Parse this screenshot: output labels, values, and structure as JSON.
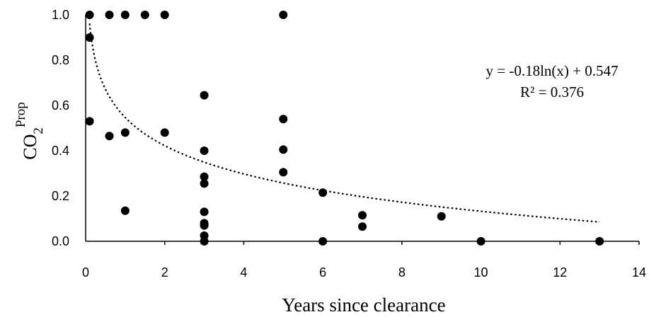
{
  "chart_data": {
    "type": "scatter",
    "xlabel": "Years since clearance",
    "ylabel": {
      "main": "CO",
      "sub": "2",
      "sup": "Prop"
    },
    "xlim": [
      0,
      14
    ],
    "ylim": [
      0,
      1.0
    ],
    "xticks": [
      0,
      2,
      4,
      6,
      8,
      10,
      12,
      14
    ],
    "yticks": [
      0.0,
      0.2,
      0.4,
      0.6,
      0.8,
      1.0
    ],
    "xtick_labels": [
      "0",
      "2",
      "4",
      "6",
      "8",
      "10",
      "12",
      "14"
    ],
    "ytick_labels": [
      "0.0",
      "0.2",
      "0.4",
      "0.6",
      "0.8",
      "1.0"
    ],
    "grid": false,
    "marker_color": "#000000",
    "points": [
      {
        "x": 0.1,
        "y": 1.0
      },
      {
        "x": 0.1,
        "y": 0.9
      },
      {
        "x": 0.1,
        "y": 0.53
      },
      {
        "x": 0.6,
        "y": 1.0
      },
      {
        "x": 0.6,
        "y": 0.465
      },
      {
        "x": 1.0,
        "y": 1.0
      },
      {
        "x": 1.0,
        "y": 0.48
      },
      {
        "x": 1.0,
        "y": 0.135
      },
      {
        "x": 1.5,
        "y": 1.0
      },
      {
        "x": 2.0,
        "y": 1.0
      },
      {
        "x": 2.0,
        "y": 0.48
      },
      {
        "x": 3.0,
        "y": 0.645
      },
      {
        "x": 3.0,
        "y": 0.4
      },
      {
        "x": 3.0,
        "y": 0.285
      },
      {
        "x": 3.0,
        "y": 0.255
      },
      {
        "x": 3.0,
        "y": 0.13
      },
      {
        "x": 3.0,
        "y": 0.08
      },
      {
        "x": 3.0,
        "y": 0.07
      },
      {
        "x": 3.0,
        "y": 0.025
      },
      {
        "x": 3.0,
        "y": 0.0
      },
      {
        "x": 5.0,
        "y": 1.0
      },
      {
        "x": 5.0,
        "y": 0.54
      },
      {
        "x": 5.0,
        "y": 0.405
      },
      {
        "x": 5.0,
        "y": 0.305
      },
      {
        "x": 6.0,
        "y": 0.215
      },
      {
        "x": 6.0,
        "y": 0.0
      },
      {
        "x": 7.0,
        "y": 0.115
      },
      {
        "x": 7.0,
        "y": 0.065
      },
      {
        "x": 9.0,
        "y": 0.11
      },
      {
        "x": 10.0,
        "y": 0.0
      },
      {
        "x": 13.0,
        "y": 0.0
      }
    ],
    "trendline": {
      "type": "logarithmic",
      "a": -0.18,
      "b": 0.547,
      "x_range": [
        0.1,
        13
      ],
      "style": "dotted",
      "equation_text": "y = -0.18ln(x) + 0.547",
      "r2_text": "R² = 0.376"
    }
  }
}
